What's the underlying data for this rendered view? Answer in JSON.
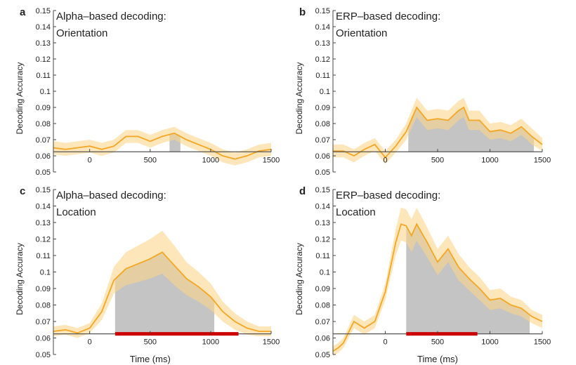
{
  "figure": {
    "panels": [
      {
        "letter": "a",
        "title_lines": [
          "Alpha–based decoding:",
          "Orientation"
        ]
      },
      {
        "letter": "b",
        "title_lines": [
          "ERP–based decoding:",
          "Orientation"
        ]
      },
      {
        "letter": "c",
        "title_lines": [
          "Alpha–based decoding:",
          "Location"
        ]
      },
      {
        "letter": "d",
        "title_lines": [
          "ERP–based decoding:",
          "Location"
        ]
      }
    ],
    "ylabel": "Decoding Accuracy",
    "xlabel": "Time (ms)",
    "colors": {
      "line": "#f5a623",
      "band": "#fbd68a",
      "significant": "#c4c4c4",
      "baseline": "#555555",
      "red_bar": "#cc0000"
    }
  },
  "chart_data": [
    {
      "type": "line",
      "panel": "a",
      "title": "Alpha–based decoding: Orientation",
      "ylabel": "Decoding Accuracy",
      "xlabel": "",
      "xlim": [
        -300,
        1500
      ],
      "ylim": [
        0.05,
        0.15
      ],
      "xticks": [
        0,
        500,
        1000,
        1500
      ],
      "yticks": [
        0.05,
        0.06,
        0.07,
        0.08,
        0.09,
        0.1,
        0.11,
        0.12,
        0.13,
        0.14,
        0.15
      ],
      "chance": 0.0625,
      "series": [
        {
          "x": [
            -300,
            -200,
            -100,
            0,
            100,
            200,
            300,
            400,
            500,
            600,
            700,
            800,
            900,
            1000,
            1100,
            1200,
            1300,
            1400,
            1500
          ],
          "y": [
            0.065,
            0.064,
            0.065,
            0.066,
            0.064,
            0.066,
            0.072,
            0.072,
            0.069,
            0.072,
            0.074,
            0.07,
            0.067,
            0.064,
            0.06,
            0.058,
            0.06,
            0.063,
            0.064
          ],
          "sem": [
            0.004,
            0.004,
            0.004,
            0.004,
            0.004,
            0.004,
            0.004,
            0.004,
            0.004,
            0.004,
            0.004,
            0.004,
            0.004,
            0.004,
            0.004,
            0.004,
            0.004,
            0.004,
            0.004
          ]
        }
      ],
      "significant": [
        [
          660,
          750
        ]
      ]
    },
    {
      "type": "line",
      "panel": "b",
      "title": "ERP–based decoding: Orientation",
      "ylabel": "Decoding Accuracy",
      "xlabel": "",
      "xlim": [
        -500,
        1500
      ],
      "ylim": [
        0.05,
        0.15
      ],
      "xticks": [
        0,
        500,
        1000,
        1500
      ],
      "yticks": [
        0.05,
        0.06,
        0.07,
        0.08,
        0.09,
        0.1,
        0.11,
        0.12,
        0.13,
        0.14,
        0.15
      ],
      "chance": 0.0625,
      "series": [
        {
          "x": [
            -500,
            -400,
            -300,
            -200,
            -100,
            0,
            100,
            200,
            300,
            400,
            500,
            600,
            700,
            750,
            800,
            900,
            1000,
            1100,
            1200,
            1300,
            1400,
            1500
          ],
          "y": [
            0.063,
            0.063,
            0.06,
            0.064,
            0.067,
            0.059,
            0.066,
            0.075,
            0.09,
            0.082,
            0.083,
            0.082,
            0.088,
            0.09,
            0.082,
            0.082,
            0.075,
            0.076,
            0.074,
            0.078,
            0.072,
            0.067
          ],
          "sem": [
            0.004,
            0.004,
            0.004,
            0.004,
            0.004,
            0.004,
            0.004,
            0.005,
            0.006,
            0.006,
            0.006,
            0.006,
            0.006,
            0.006,
            0.006,
            0.006,
            0.005,
            0.005,
            0.005,
            0.005,
            0.005,
            0.004
          ]
        }
      ],
      "significant": [
        [
          220,
          1420
        ]
      ]
    },
    {
      "type": "line",
      "panel": "c",
      "title": "Alpha–based decoding: Location",
      "ylabel": "Decoding Accuracy",
      "xlabel": "Time (ms)",
      "xlim": [
        -300,
        1500
      ],
      "ylim": [
        0.05,
        0.15
      ],
      "xticks": [
        0,
        500,
        1000,
        1500
      ],
      "yticks": [
        0.05,
        0.06,
        0.07,
        0.08,
        0.09,
        0.1,
        0.11,
        0.12,
        0.13,
        0.14,
        0.15
      ],
      "chance": 0.0625,
      "series": [
        {
          "x": [
            -300,
            -200,
            -100,
            0,
            100,
            200,
            300,
            400,
            500,
            600,
            700,
            800,
            900,
            1000,
            1100,
            1200,
            1300,
            1400,
            1500
          ],
          "y": [
            0.064,
            0.065,
            0.063,
            0.066,
            0.076,
            0.095,
            0.102,
            0.105,
            0.108,
            0.112,
            0.104,
            0.096,
            0.091,
            0.085,
            0.076,
            0.07,
            0.066,
            0.064,
            0.064
          ],
          "sem": [
            0.003,
            0.003,
            0.003,
            0.003,
            0.005,
            0.008,
            0.01,
            0.011,
            0.012,
            0.013,
            0.012,
            0.01,
            0.009,
            0.008,
            0.006,
            0.005,
            0.004,
            0.003,
            0.003
          ]
        }
      ],
      "significant": [
        [
          210,
          1030
        ]
      ],
      "red_bar": [
        210,
        1230
      ]
    },
    {
      "type": "line",
      "panel": "d",
      "title": "ERP–based decoding: Location",
      "ylabel": "Decoding Accuracy",
      "xlabel": "Time (ms)",
      "xlim": [
        -500,
        1500
      ],
      "ylim": [
        0.05,
        0.15
      ],
      "xticks": [
        0,
        500,
        1000,
        1500
      ],
      "yticks": [
        0.05,
        0.06,
        0.07,
        0.08,
        0.09,
        0.1,
        0.11,
        0.12,
        0.13,
        0.14,
        0.15
      ],
      "chance": 0.0625,
      "series": [
        {
          "x": [
            -500,
            -450,
            -400,
            -300,
            -200,
            -100,
            0,
            100,
            150,
            200,
            250,
            300,
            400,
            500,
            600,
            700,
            800,
            900,
            1000,
            1100,
            1200,
            1300,
            1400,
            1500
          ],
          "y": [
            0.052,
            0.054,
            0.057,
            0.07,
            0.066,
            0.07,
            0.088,
            0.118,
            0.129,
            0.128,
            0.122,
            0.129,
            0.118,
            0.106,
            0.114,
            0.103,
            0.096,
            0.09,
            0.083,
            0.084,
            0.08,
            0.078,
            0.073,
            0.07
          ],
          "sem": [
            0.003,
            0.003,
            0.003,
            0.004,
            0.004,
            0.004,
            0.005,
            0.008,
            0.01,
            0.01,
            0.01,
            0.01,
            0.009,
            0.008,
            0.008,
            0.008,
            0.007,
            0.007,
            0.006,
            0.006,
            0.005,
            0.005,
            0.004,
            0.004
          ]
        }
      ],
      "significant": [
        [
          200,
          1380
        ]
      ],
      "red_bar": [
        200,
        880
      ]
    }
  ]
}
